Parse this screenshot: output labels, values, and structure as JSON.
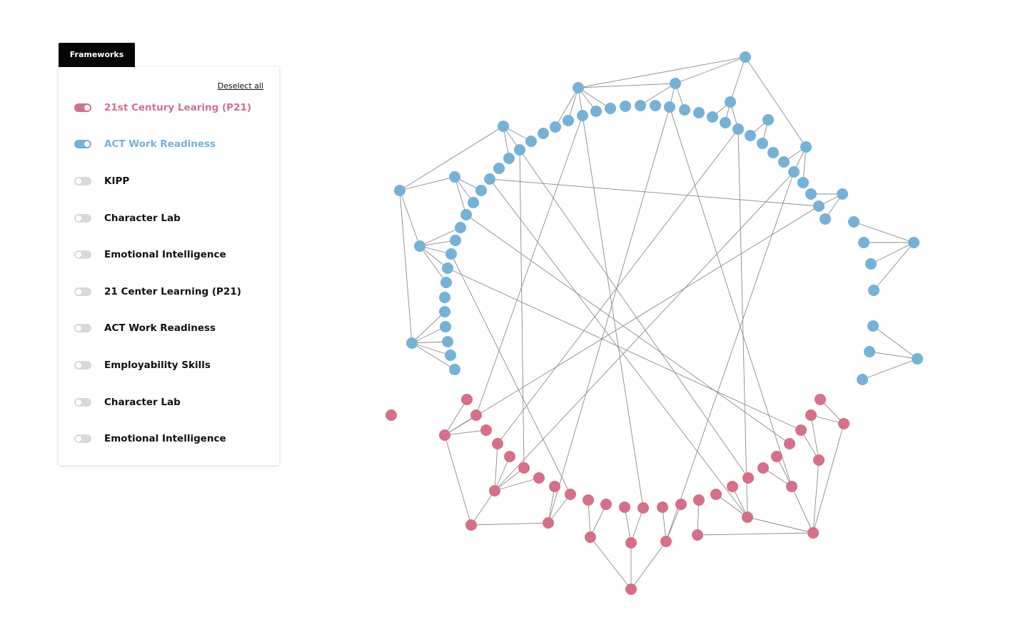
{
  "panel": {
    "tab_label": "Frameworks",
    "deselect_label": "Deselect all",
    "items": [
      {
        "label": "21st Century Learing (P21)",
        "active": true,
        "color": "#d4708a"
      },
      {
        "label": "ACT Work Readiness",
        "active": true,
        "color": "#77b1d6"
      },
      {
        "label": "KIPP",
        "active": false
      },
      {
        "label": "Character Lab",
        "active": false
      },
      {
        "label": "Emotional Intelligence",
        "active": false
      },
      {
        "label": "21 Center Learning (P21)",
        "active": false
      },
      {
        "label": "ACT Work Readiness",
        "active": false
      },
      {
        "label": "Employability Skills",
        "active": false
      },
      {
        "label": "Character Lab",
        "active": false
      },
      {
        "label": "Emotional Intelligence",
        "active": false
      }
    ]
  },
  "graph": {
    "node_colors": {
      "blue": "#77b1d6",
      "pink": "#d4708a"
    },
    "edge_color": "#8c8c8c"
  }
}
